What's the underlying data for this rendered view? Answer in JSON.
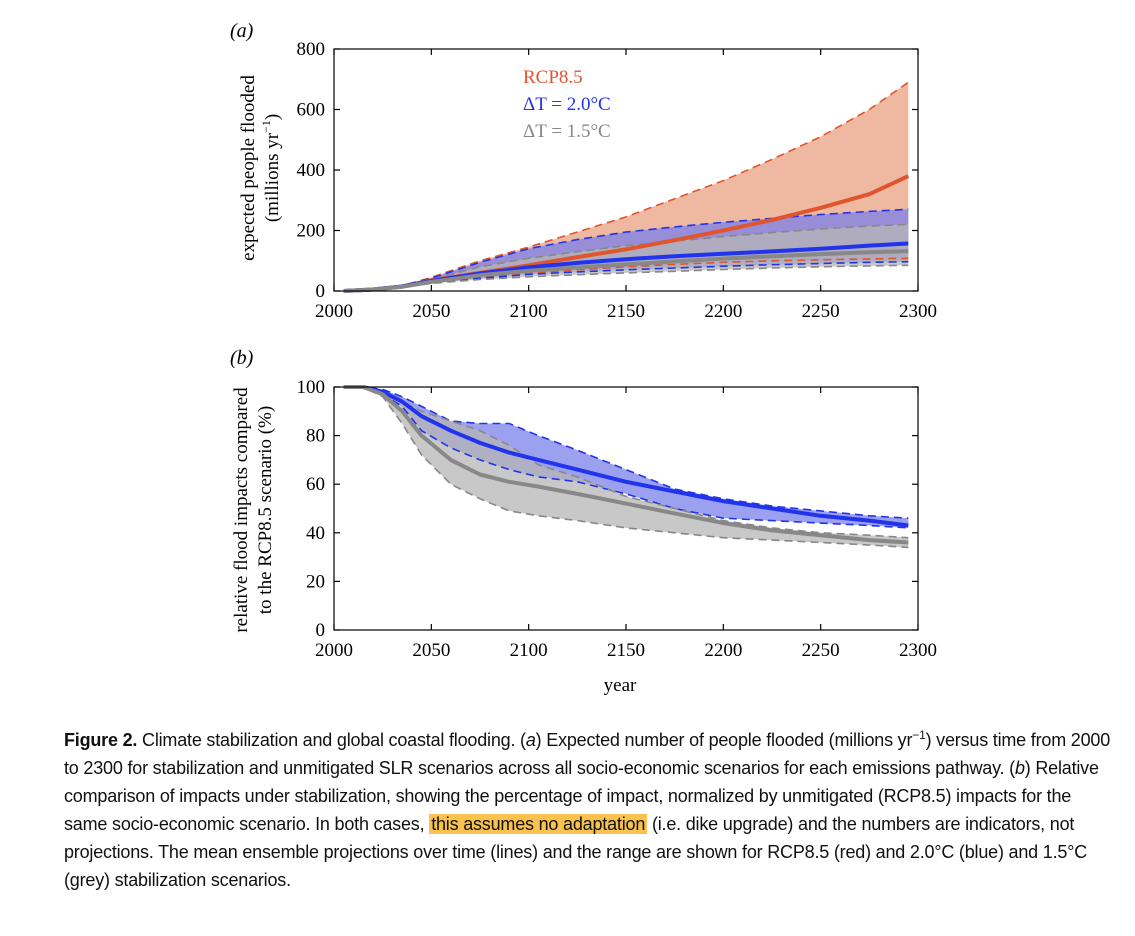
{
  "chart_data": [
    {
      "type": "area",
      "panel_label": "(a)",
      "ylabel": "expected people flooded",
      "ylabel_line2": "(millions yr",
      "ylabel_sup": "−1",
      "ylabel_close": ")",
      "xlim": [
        2000,
        2300
      ],
      "ylim": [
        0,
        800
      ],
      "xticks": [
        2000,
        2050,
        2100,
        2150,
        2200,
        2250,
        2300
      ],
      "yticks": [
        0,
        200,
        400,
        600,
        800
      ],
      "grid": false,
      "legend_position": "top-left",
      "x": [
        2005,
        2020,
        2035,
        2050,
        2075,
        2100,
        2125,
        2150,
        2175,
        2200,
        2225,
        2250,
        2275,
        2295
      ],
      "series": [
        {
          "name": "RCP8.5",
          "color": "#e0552e",
          "fill": "#eaa080",
          "mean": [
            0,
            5,
            15,
            35,
            60,
            85,
            112,
            138,
            168,
            200,
            235,
            275,
            320,
            380
          ],
          "low": [
            0,
            4,
            13,
            30,
            45,
            58,
            70,
            80,
            88,
            95,
            100,
            103,
            106,
            108
          ],
          "high": [
            0,
            6,
            18,
            45,
            100,
            145,
            195,
            245,
            305,
            365,
            435,
            510,
            600,
            690
          ]
        },
        {
          "name": "ΔT = 2.0°C",
          "color": "#2233ee",
          "fill": "#7a80ea",
          "mean": [
            0,
            5,
            15,
            33,
            58,
            78,
            93,
            105,
            115,
            123,
            131,
            140,
            150,
            157
          ],
          "low": [
            0,
            4,
            13,
            28,
            42,
            55,
            63,
            70,
            76,
            82,
            87,
            91,
            95,
            97
          ],
          "high": [
            0,
            6,
            17,
            42,
            95,
            140,
            170,
            195,
            212,
            227,
            240,
            253,
            263,
            270
          ]
        },
        {
          "name": "ΔT = 1.5°C",
          "color": "#888888",
          "fill": "#b5b5b5",
          "mean": [
            0,
            5,
            14,
            30,
            52,
            67,
            78,
            88,
            98,
            107,
            115,
            122,
            128,
            132
          ],
          "low": [
            0,
            4,
            12,
            25,
            38,
            47,
            54,
            60,
            65,
            71,
            76,
            80,
            83,
            85
          ],
          "high": [
            0,
            5,
            16,
            38,
            80,
            108,
            130,
            150,
            165,
            180,
            193,
            205,
            215,
            220
          ]
        }
      ]
    },
    {
      "type": "area",
      "panel_label": "(b)",
      "ylabel": "relative flood impacts compared",
      "ylabel_line2": "to the RCP8.5 scenario (%)",
      "xlabel": "year",
      "xlim": [
        2000,
        2300
      ],
      "ylim": [
        0,
        100
      ],
      "xticks": [
        2000,
        2050,
        2100,
        2150,
        2200,
        2250,
        2300
      ],
      "yticks": [
        0,
        20,
        40,
        60,
        80,
        100
      ],
      "grid": false,
      "x": [
        2005,
        2015,
        2025,
        2035,
        2045,
        2060,
        2075,
        2090,
        2105,
        2125,
        2150,
        2175,
        2200,
        2225,
        2250,
        2275,
        2295
      ],
      "series": [
        {
          "name": "ΔT = 2.0°C",
          "color": "#2233ee",
          "fill": "#7a80ea",
          "mean": [
            100,
            100,
            98,
            94,
            88,
            82,
            77,
            73,
            70,
            66,
            61,
            57,
            53,
            50,
            47,
            45,
            43
          ],
          "low": [
            100,
            100,
            97,
            92,
            82,
            75,
            70,
            66,
            63,
            61,
            56,
            50,
            46,
            45,
            44,
            43,
            42
          ],
          "high": [
            100,
            100,
            99,
            96,
            92,
            86,
            85,
            85,
            80,
            74,
            66,
            58,
            54,
            51,
            49,
            47,
            46
          ]
        },
        {
          "name": "ΔT = 1.5°C",
          "color": "#888888",
          "fill": "#b5b5b5",
          "mean": [
            100,
            100,
            97,
            90,
            80,
            70,
            64,
            61,
            59,
            56,
            52,
            48,
            44,
            41,
            39,
            37,
            36
          ],
          "low": [
            100,
            100,
            96,
            85,
            72,
            60,
            54,
            49,
            47,
            45,
            42,
            40,
            38,
            37,
            36,
            35,
            34
          ],
          "high": [
            100,
            100,
            98,
            94,
            90,
            86,
            82,
            76,
            68,
            63,
            55,
            50,
            45,
            42,
            40,
            39,
            38
          ]
        }
      ]
    }
  ],
  "caption": {
    "label": "Figure 2.",
    "p1": " Climate stabilization and global coastal flooding. (",
    "a": "a",
    "p2": ") Expected number of people flooded (millions yr",
    "sup": "−1",
    "p3": ") versus time from 2000 to 2300 for stabilization and unmitigated SLR scenarios across all socio-economic scenarios for each emissions pathway. (",
    "b": "b",
    "p4": ") Relative comparison of impacts under stabilization, showing the percentage of impact, normalized by unmitigated (RCP8.5) impacts for the same socio-economic scenario. In both cases, ",
    "highlight": "this assumes no adaptation",
    "p5": " (i.e. dike upgrade) and the numbers are indicators, not projections. The mean ensemble projections over time (lines) and the range are shown for RCP8.5 (red) and 2.0°C (blue) and 1.5°C (grey) stabilization scenarios."
  },
  "colors": {
    "highlight": "#f9c24d"
  }
}
